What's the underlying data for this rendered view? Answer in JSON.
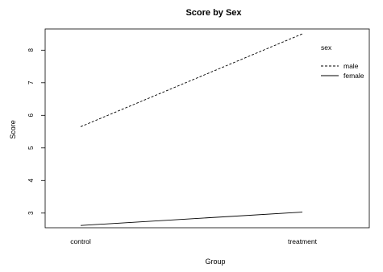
{
  "chart_data": {
    "type": "line",
    "title": "Score by Sex",
    "xlabel": "Group",
    "ylabel": "Score",
    "categories": [
      "control",
      "treatment"
    ],
    "ylim": [
      2.55,
      8.65
    ],
    "yticks": [
      3,
      4,
      5,
      6,
      7,
      8
    ],
    "legend_title": "sex",
    "legend_position": "top-right",
    "grid": false,
    "series": [
      {
        "name": "male",
        "values": [
          5.65,
          8.5
        ],
        "line_style": "dashed",
        "color": "#000000"
      },
      {
        "name": "female",
        "values": [
          2.62,
          3.03
        ],
        "line_style": "solid",
        "color": "#000000"
      }
    ]
  }
}
